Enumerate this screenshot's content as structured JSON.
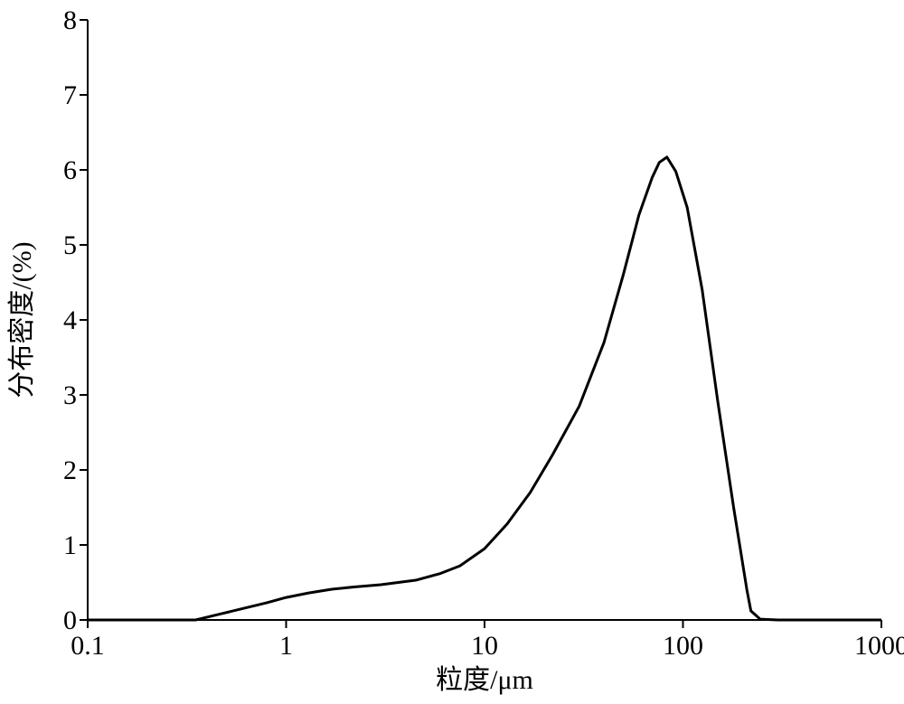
{
  "chart_data": {
    "type": "line",
    "x_label": "粒度/μm",
    "y_label": "分布密度/(%)",
    "x": [
      0.1,
      0.35,
      0.45,
      0.6,
      0.8,
      1,
      1.3,
      1.7,
      2.2,
      3,
      4.5,
      6,
      7.5,
      10,
      13,
      17,
      22,
      30,
      40,
      50,
      60,
      70,
      76,
      83,
      92,
      105,
      125,
      150,
      180,
      210,
      220,
      245,
      300,
      1000
    ],
    "series": [
      {
        "color": "#000000",
        "values": [
          0,
          0,
          0.07,
          0.15,
          0.23,
          0.3,
          0.36,
          0.41,
          0.44,
          0.47,
          0.53,
          0.62,
          0.72,
          0.95,
          1.28,
          1.7,
          2.2,
          2.85,
          3.7,
          4.6,
          5.4,
          5.9,
          6.1,
          6.17,
          5.98,
          5.5,
          4.4,
          2.9,
          1.5,
          0.4,
          0.12,
          0.01,
          0,
          0
        ]
      }
    ],
    "xlog": true,
    "xlim": [
      0.1,
      1000
    ],
    "xticks": [
      0.1,
      1,
      10,
      100,
      1000
    ],
    "ylim": [
      0,
      8
    ],
    "yticks": [
      0,
      1,
      2,
      3,
      4,
      5,
      6,
      7,
      8
    ]
  }
}
